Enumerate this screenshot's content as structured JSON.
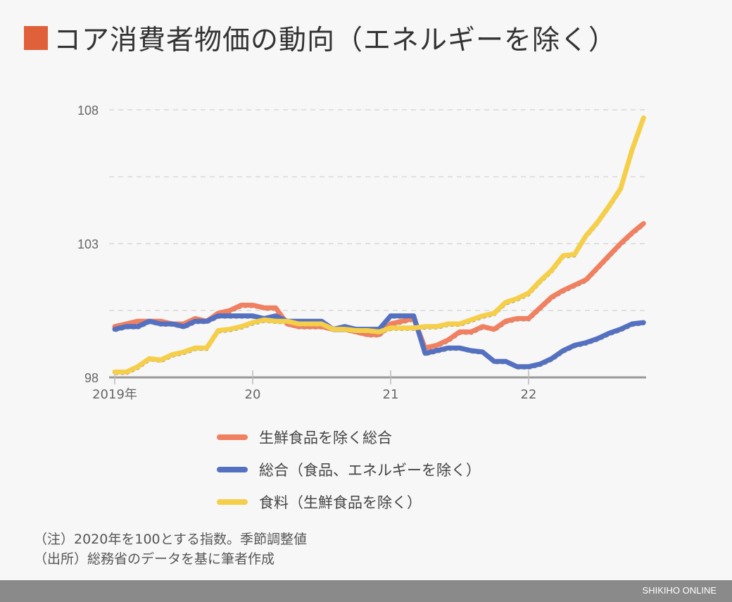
{
  "title": "コア消費者物価の動向（エネルギーを除く）",
  "colors": {
    "title_square": "#e0603a",
    "orange": "#f08060",
    "blue": "#5470c0",
    "yellow": "#f5cf4a"
  },
  "notes": [
    "（注）2020年を100とする指数。季節調整値",
    "（出所）総務省のデータを基に筆者作成"
  ],
  "footer": "SHIKIHO ONLINE",
  "chart_data": {
    "type": "line",
    "title": "コア消費者物価の動向（エネルギーを除く）",
    "xlabel": "",
    "ylabel": "",
    "ylim": [
      98,
      108.5
    ],
    "yticks": [
      98,
      103,
      108
    ],
    "grid_values": [
      100.5,
      103,
      105.5,
      108
    ],
    "grid": true,
    "xtick_labels": [
      "2019年",
      "20",
      "21",
      "22"
    ],
    "x_start": "2019-01",
    "x_end": "2022-11",
    "legend_position": "bottom",
    "series": [
      {
        "name": "生鮮食品を除く総合",
        "color": "#f08060",
        "values": [
          99.9,
          100.0,
          100.1,
          100.1,
          100.1,
          100.0,
          100.0,
          100.2,
          100.1,
          100.4,
          100.5,
          100.7,
          100.7,
          100.6,
          100.6,
          100.0,
          99.9,
          99.9,
          99.9,
          99.8,
          99.8,
          99.7,
          99.6,
          99.6,
          100.0,
          100.1,
          100.2,
          99.1,
          99.2,
          99.4,
          99.7,
          99.7,
          99.9,
          99.8,
          100.1,
          100.2,
          100.2,
          100.6,
          101.0,
          101.25,
          101.45,
          101.65,
          102.1,
          102.55,
          103.0,
          103.4,
          103.75
        ]
      },
      {
        "name": "総合（食品、エネルギーを除く）",
        "color": "#5470c0",
        "values": [
          99.8,
          99.9,
          99.9,
          100.1,
          100.0,
          100.0,
          99.9,
          100.1,
          100.1,
          100.3,
          100.3,
          100.3,
          100.3,
          100.2,
          100.3,
          100.1,
          100.1,
          100.1,
          100.1,
          99.8,
          99.9,
          99.8,
          99.8,
          99.8,
          100.3,
          100.3,
          100.3,
          98.9,
          99.0,
          99.1,
          99.1,
          99.0,
          98.95,
          98.6,
          98.6,
          98.4,
          98.4,
          98.5,
          98.7,
          99.0,
          99.2,
          99.3,
          99.45,
          99.65,
          99.8,
          100.0,
          100.05
        ]
      },
      {
        "name": "食料（生鮮食品を除く）",
        "color": "#f5cf4a",
        "values": [
          98.2,
          98.2,
          98.4,
          98.7,
          98.65,
          98.85,
          98.95,
          99.1,
          99.1,
          99.75,
          99.8,
          99.9,
          100.05,
          100.15,
          100.1,
          100.1,
          100.0,
          100.0,
          100.0,
          99.8,
          99.8,
          99.75,
          99.75,
          99.7,
          99.85,
          99.85,
          99.85,
          99.9,
          99.9,
          100.0,
          100.0,
          100.15,
          100.3,
          100.4,
          100.8,
          100.95,
          101.15,
          101.6,
          102.0,
          102.55,
          102.6,
          103.3,
          103.8,
          104.4,
          105.05,
          106.5,
          107.7
        ]
      }
    ]
  }
}
